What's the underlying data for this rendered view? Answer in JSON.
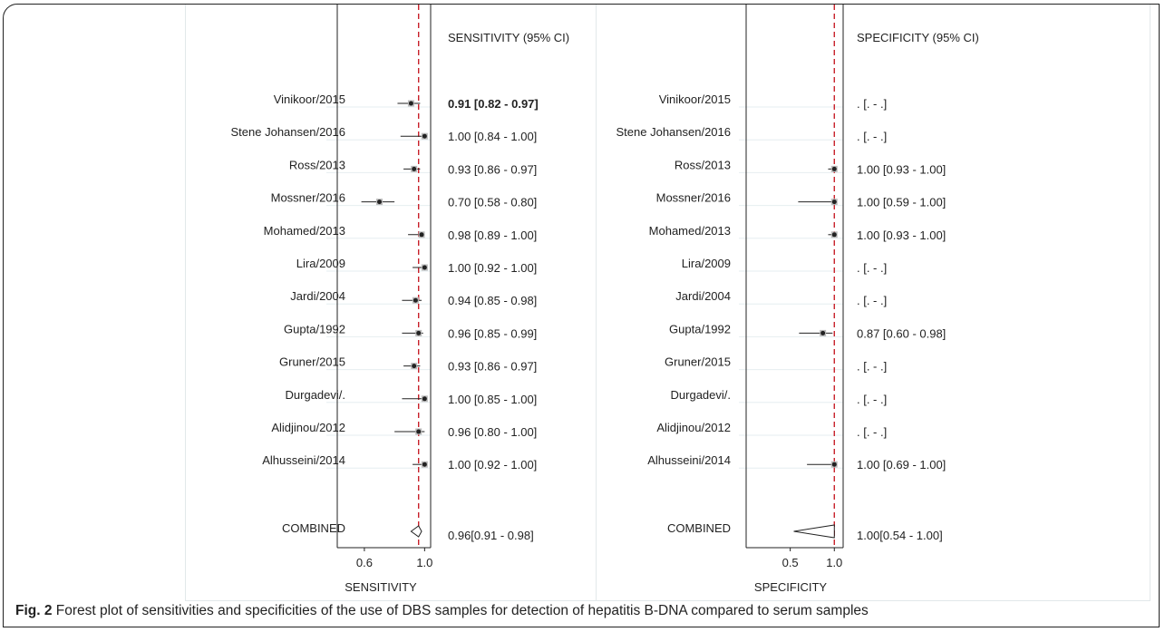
{
  "chart_data": [
    {
      "type": "forest",
      "panel": "sensitivity",
      "ci_header": "SENSITIVITY (95% CI)",
      "xlabel": "SENSITIVITY",
      "xticks": [
        0.6,
        1.0
      ],
      "xtick_labels": [
        "0.6",
        "1.0"
      ],
      "xlim": [
        0.42,
        1.04
      ],
      "reference_line": 0.96,
      "studies": [
        {
          "name": "Vinikoor/2015",
          "estimate": 0.91,
          "lower": 0.82,
          "upper": 0.97,
          "label": "0.91 [0.82 - 0.97]",
          "bold": true
        },
        {
          "name": "Stene Johansen/2016",
          "estimate": 1.0,
          "lower": 0.84,
          "upper": 1.0,
          "label": "1.00 [0.84 - 1.00]"
        },
        {
          "name": "Ross/2013",
          "estimate": 0.93,
          "lower": 0.86,
          "upper": 0.97,
          "label": "0.93 [0.86 - 0.97]"
        },
        {
          "name": "Mossner/2016",
          "estimate": 0.7,
          "lower": 0.58,
          "upper": 0.8,
          "label": "0.70 [0.58 - 0.80]"
        },
        {
          "name": "Mohamed/2013",
          "estimate": 0.98,
          "lower": 0.89,
          "upper": 1.0,
          "label": "0.98 [0.89 - 1.00]"
        },
        {
          "name": "Lira/2009",
          "estimate": 1.0,
          "lower": 0.92,
          "upper": 1.0,
          "label": "1.00 [0.92 - 1.00]"
        },
        {
          "name": "Jardi/2004",
          "estimate": 0.94,
          "lower": 0.85,
          "upper": 0.98,
          "label": "0.94 [0.85 - 0.98]"
        },
        {
          "name": "Gupta/1992",
          "estimate": 0.96,
          "lower": 0.85,
          "upper": 0.99,
          "label": "0.96 [0.85 - 0.99]"
        },
        {
          "name": "Gruner/2015",
          "estimate": 0.93,
          "lower": 0.86,
          "upper": 0.97,
          "label": "0.93 [0.86 - 0.97]"
        },
        {
          "name": "Durgadevi/.",
          "estimate": 1.0,
          "lower": 0.85,
          "upper": 1.0,
          "label": "1.00 [0.85 - 1.00]"
        },
        {
          "name": "Alidjinou/2012",
          "estimate": 0.96,
          "lower": 0.8,
          "upper": 1.0,
          "label": "0.96 [0.80 - 1.00]"
        },
        {
          "name": "Alhusseini/2014",
          "estimate": 1.0,
          "lower": 0.92,
          "upper": 1.0,
          "label": "1.00 [0.92 - 1.00]"
        }
      ],
      "combined": {
        "name": "COMBINED",
        "estimate": 0.96,
        "lower": 0.91,
        "upper": 0.98,
        "label": "0.96[0.91 - 0.98]"
      }
    },
    {
      "type": "forest",
      "panel": "specificity",
      "ci_header": "SPECIFICITY (95% CI)",
      "xlabel": "SPECIFICITY",
      "xticks": [
        0.5,
        1.0
      ],
      "xtick_labels": [
        "0.5",
        "1.0"
      ],
      "xlim": [
        0.0,
        1.1
      ],
      "reference_line": 1.0,
      "studies": [
        {
          "name": "Vinikoor/2015",
          "estimate": null,
          "lower": null,
          "upper": null,
          "label": ". [. - .]"
        },
        {
          "name": "Stene Johansen/2016",
          "estimate": null,
          "lower": null,
          "upper": null,
          "label": ". [. - .]"
        },
        {
          "name": "Ross/2013",
          "estimate": 1.0,
          "lower": 0.93,
          "upper": 1.0,
          "label": "1.00 [0.93 - 1.00]"
        },
        {
          "name": "Mossner/2016",
          "estimate": 1.0,
          "lower": 0.59,
          "upper": 1.0,
          "label": "1.00 [0.59 - 1.00]"
        },
        {
          "name": "Mohamed/2013",
          "estimate": 1.0,
          "lower": 0.93,
          "upper": 1.0,
          "label": "1.00 [0.93 - 1.00]"
        },
        {
          "name": "Lira/2009",
          "estimate": null,
          "lower": null,
          "upper": null,
          "label": ". [. - .]"
        },
        {
          "name": "Jardi/2004",
          "estimate": null,
          "lower": null,
          "upper": null,
          "label": ". [. - .]"
        },
        {
          "name": "Gupta/1992",
          "estimate": 0.87,
          "lower": 0.6,
          "upper": 0.98,
          "label": "0.87 [0.60 - 0.98]"
        },
        {
          "name": "Gruner/2015",
          "estimate": null,
          "lower": null,
          "upper": null,
          "label": ". [. - .]"
        },
        {
          "name": "Durgadevi/.",
          "estimate": null,
          "lower": null,
          "upper": null,
          "label": ". [. - .]"
        },
        {
          "name": "Alidjinou/2012",
          "estimate": null,
          "lower": null,
          "upper": null,
          "label": ". [. - .]"
        },
        {
          "name": "Alhusseini/2014",
          "estimate": 1.0,
          "lower": 0.69,
          "upper": 1.0,
          "label": "1.00 [0.69 - 1.00]"
        }
      ],
      "combined": {
        "name": "COMBINED",
        "estimate": 1.0,
        "lower": 0.54,
        "upper": 1.0,
        "label": "1.00[0.54 - 1.00]"
      }
    }
  ],
  "caption": {
    "fig_label": "Fig. 2",
    "text": " Forest plot of sensitivities and specificities of the use of DBS samples for detection of hepatitis B-DNA compared to serum samples"
  },
  "colors": {
    "reference_line": "#c8202a",
    "gridline": "#e6eef0",
    "marker": "#222222"
  }
}
